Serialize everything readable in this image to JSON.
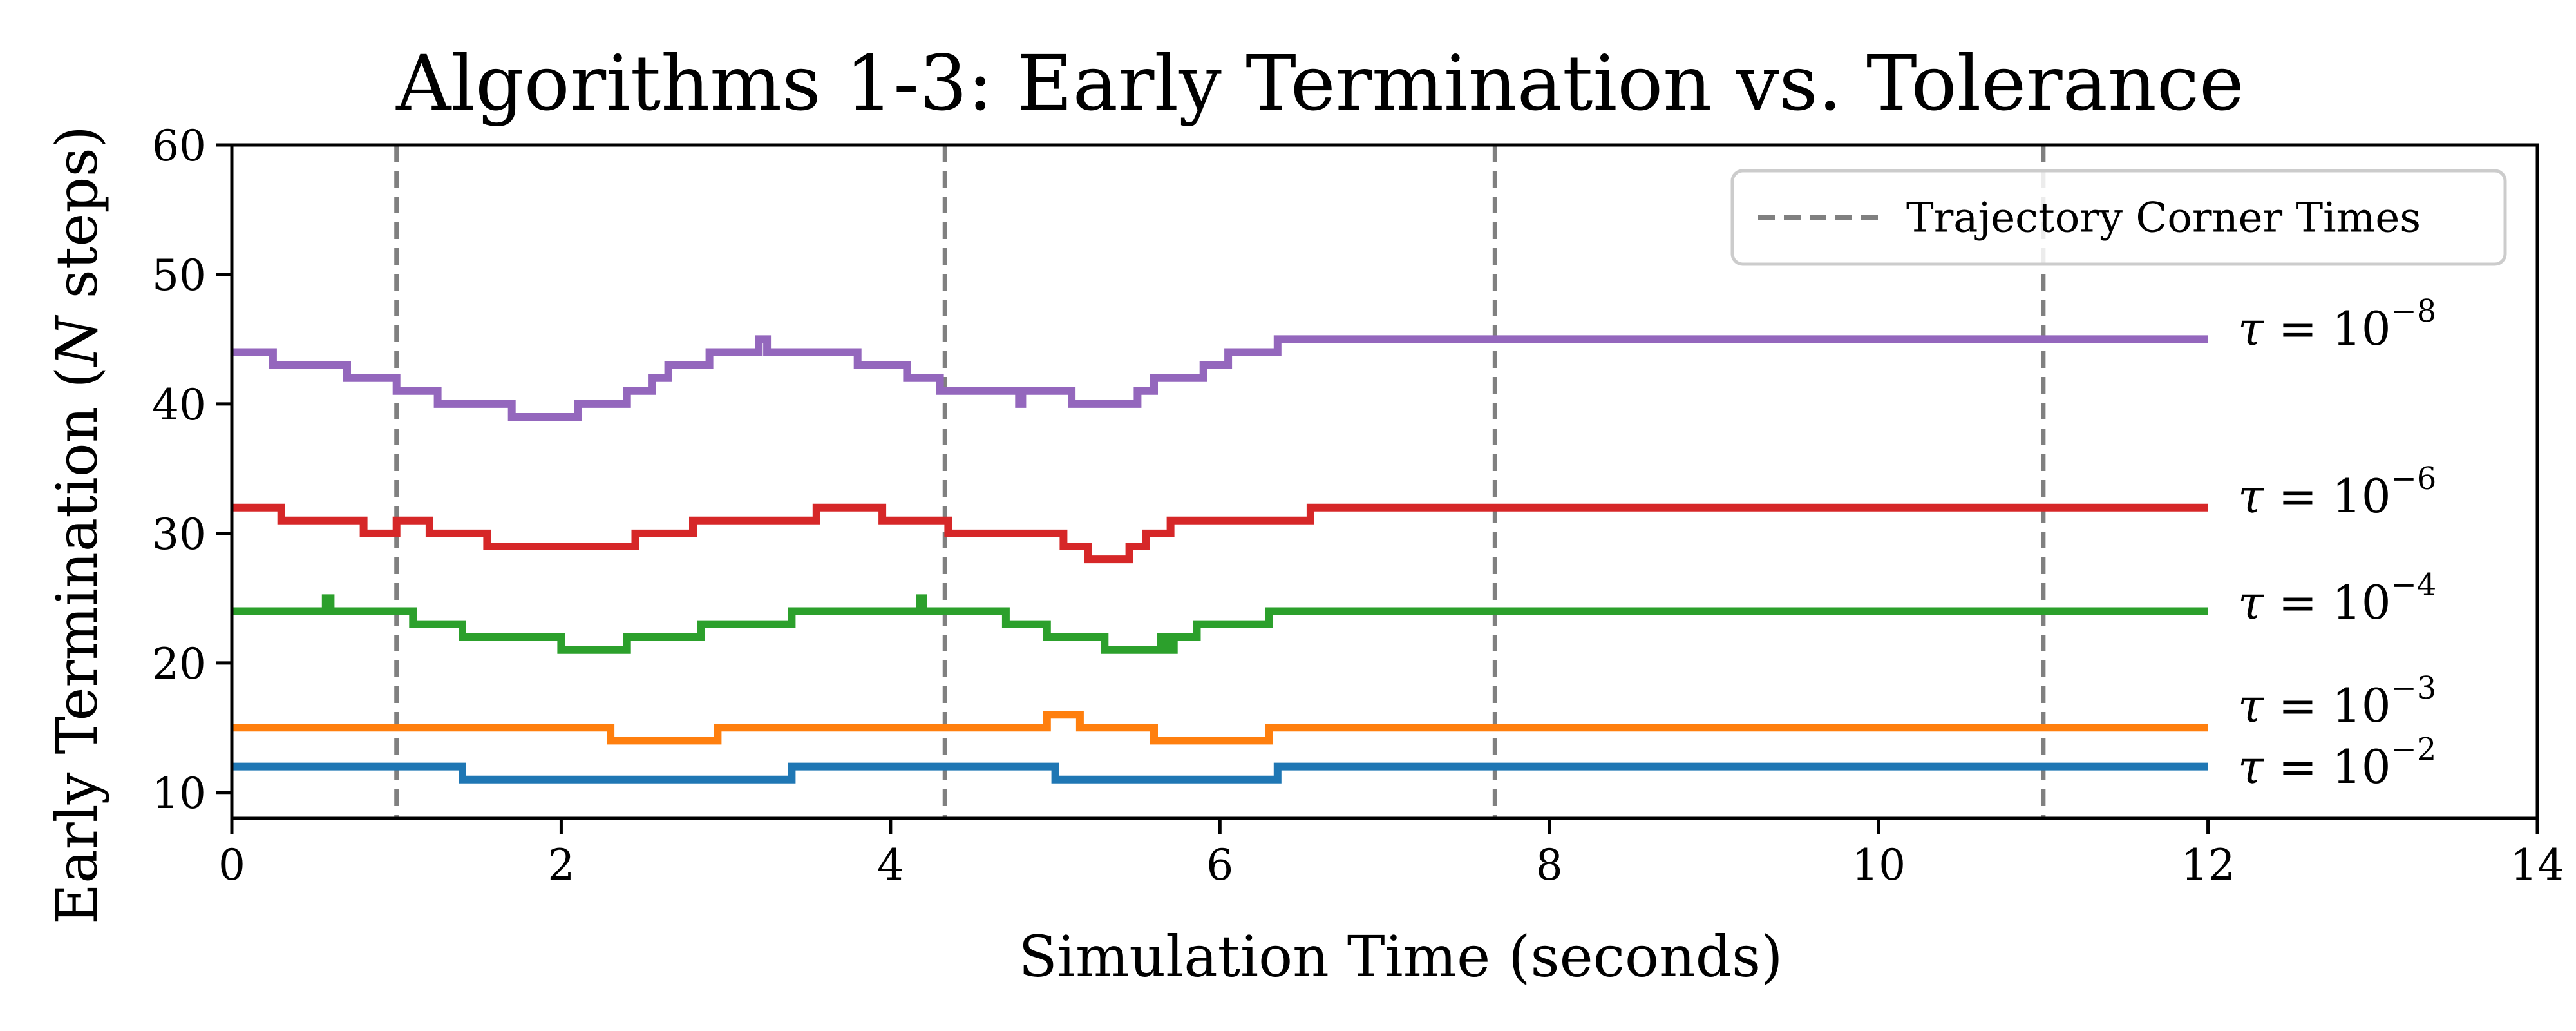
{
  "chart_data": {
    "type": "line",
    "step": true,
    "title": "Algorithms 1-3: Early Termination vs. Tolerance",
    "xlabel": "Simulation Time (seconds)",
    "ylabel_prefix": "Early Termination (",
    "ylabel_var": "N",
    "ylabel_suffix": " steps)",
    "xlim": [
      0,
      14
    ],
    "ylim": [
      8,
      60
    ],
    "xticks": [
      0,
      2,
      4,
      6,
      8,
      10,
      12,
      14
    ],
    "yticks": [
      10,
      20,
      30,
      40,
      50,
      60
    ],
    "grid": false,
    "legend": {
      "position": "top-right",
      "label": "Trajectory Corner Times",
      "color": "#808080"
    },
    "corner_times": [
      1.0,
      4.33,
      7.67,
      11.0
    ],
    "series": [
      {
        "label_prefix": "τ = 10",
        "label_exp": "−8",
        "color": "#9467bd",
        "x": [
          0,
          0.25,
          0.7,
          1.0,
          1.25,
          1.7,
          2.1,
          2.4,
          2.55,
          2.65,
          2.9,
          3.2,
          3.25,
          3.3,
          3.8,
          4.1,
          4.3,
          4.4,
          4.7,
          4.78,
          4.8,
          5.1,
          5.5,
          5.6,
          5.7,
          5.9,
          6.05,
          6.35,
          12
        ],
        "y": [
          44,
          43,
          42,
          41,
          40,
          39,
          40,
          41,
          42,
          43,
          44,
          45,
          44,
          44,
          43,
          42,
          41,
          41,
          41,
          40,
          41,
          40,
          41,
          42,
          42,
          43,
          44,
          45,
          45
        ]
      },
      {
        "label_prefix": "τ = 10",
        "label_exp": "−6",
        "color": "#d62728",
        "x": [
          0,
          0.3,
          0.8,
          1.0,
          1.2,
          1.55,
          2.45,
          2.8,
          3.55,
          3.95,
          4.35,
          5.05,
          5.2,
          5.45,
          5.55,
          5.7,
          6.55,
          12
        ],
        "y": [
          32,
          31,
          30,
          31,
          30,
          29,
          30,
          31,
          32,
          31,
          30,
          29,
          28,
          29,
          30,
          31,
          32,
          32
        ]
      },
      {
        "label_prefix": "τ = 10",
        "label_exp": "−4",
        "color": "#2ca02c",
        "x": [
          0,
          0.57,
          0.6,
          0.62,
          1.1,
          1.4,
          2.0,
          2.4,
          2.85,
          3.4,
          4.18,
          4.2,
          4.22,
          4.7,
          4.95,
          5.3,
          5.64,
          5.68,
          5.72,
          5.86,
          6.3,
          12
        ],
        "y": [
          24,
          25,
          24,
          24,
          23,
          22,
          21,
          22,
          23,
          24,
          25,
          24,
          24,
          23,
          22,
          21,
          22,
          21,
          22,
          23,
          24,
          24
        ],
        "mode": "spike-aware"
      },
      {
        "label_prefix": "τ = 10",
        "label_exp": "−3",
        "color": "#ff7f0e",
        "x": [
          0,
          2.3,
          2.95,
          4.95,
          5.15,
          5.6,
          6.3,
          12
        ],
        "y": [
          15,
          14,
          15,
          16,
          15,
          14,
          15,
          15
        ]
      },
      {
        "label_prefix": "τ = 10",
        "label_exp": "−2",
        "color": "#1f77b4",
        "x": [
          0,
          1.4,
          3.4,
          5.0,
          6.35,
          12
        ],
        "y": [
          12,
          11,
          12,
          11,
          12,
          12
        ]
      }
    ],
    "series_label_texts": [
      "τ = 10−8",
      "10−6",
      "τ = 10−4",
      "τ = 10−3",
      "τ = 10−2"
    ]
  }
}
